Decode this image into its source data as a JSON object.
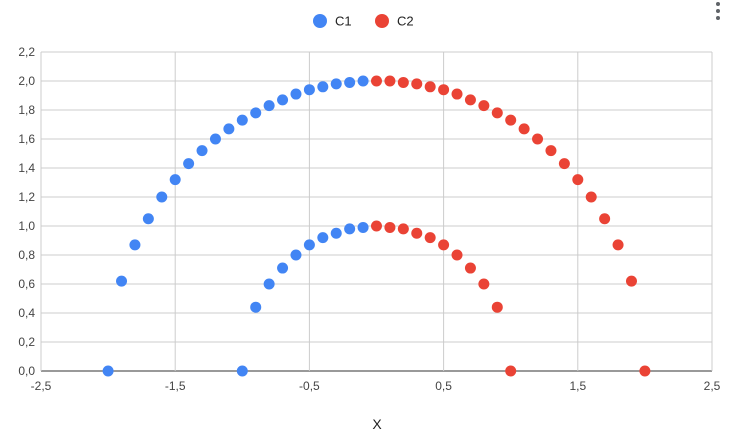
{
  "chart_data": {
    "type": "scatter",
    "title": "",
    "xlabel": "X",
    "ylabel": "",
    "xlim": [
      -2.5,
      2.5
    ],
    "ylim": [
      0,
      2.2
    ],
    "x_ticks": [
      "-2,5",
      "-1,5",
      "-0,5",
      "0,5",
      "1,5",
      "2,5"
    ],
    "x_tick_values": [
      -2.5,
      -1.5,
      -0.5,
      0.5,
      1.5,
      2.5
    ],
    "y_ticks": [
      "0,0",
      "0,2",
      "0,4",
      "0,6",
      "0,8",
      "1,0",
      "1,2",
      "1,4",
      "1,6",
      "1,8",
      "2,0",
      "2,2"
    ],
    "y_tick_values": [
      0,
      0.2,
      0.4,
      0.6,
      0.8,
      1.0,
      1.2,
      1.4,
      1.6,
      1.8,
      2.0,
      2.2
    ],
    "grid": true,
    "legend_position": "top",
    "series": [
      {
        "name": "C1",
        "color": "#4285f4",
        "points": [
          [
            -2.0,
            0.0
          ],
          [
            -1.9,
            0.62
          ],
          [
            -1.8,
            0.87
          ],
          [
            -1.7,
            1.05
          ],
          [
            -1.6,
            1.2
          ],
          [
            -1.5,
            1.32
          ],
          [
            -1.4,
            1.43
          ],
          [
            -1.3,
            1.52
          ],
          [
            -1.2,
            1.6
          ],
          [
            -1.1,
            1.67
          ],
          [
            -1.0,
            1.73
          ],
          [
            -0.9,
            1.78
          ],
          [
            -0.8,
            1.83
          ],
          [
            -0.7,
            1.87
          ],
          [
            -0.6,
            1.91
          ],
          [
            -0.5,
            1.94
          ],
          [
            -0.4,
            1.96
          ],
          [
            -0.3,
            1.98
          ],
          [
            -0.2,
            1.99
          ],
          [
            -0.1,
            2.0
          ],
          [
            -1.0,
            0.0
          ],
          [
            -0.9,
            0.44
          ],
          [
            -0.8,
            0.6
          ],
          [
            -0.7,
            0.71
          ],
          [
            -0.6,
            0.8
          ],
          [
            -0.5,
            0.87
          ],
          [
            -0.4,
            0.92
          ],
          [
            -0.3,
            0.95
          ],
          [
            -0.2,
            0.98
          ],
          [
            -0.1,
            0.99
          ]
        ]
      },
      {
        "name": "C2",
        "color": "#ea4335",
        "points": [
          [
            0.0,
            2.0
          ],
          [
            0.1,
            2.0
          ],
          [
            0.2,
            1.99
          ],
          [
            0.3,
            1.98
          ],
          [
            0.4,
            1.96
          ],
          [
            0.5,
            1.94
          ],
          [
            0.6,
            1.91
          ],
          [
            0.7,
            1.87
          ],
          [
            0.8,
            1.83
          ],
          [
            0.9,
            1.78
          ],
          [
            1.0,
            1.73
          ],
          [
            1.1,
            1.67
          ],
          [
            1.2,
            1.6
          ],
          [
            1.3,
            1.52
          ],
          [
            1.4,
            1.43
          ],
          [
            1.5,
            1.32
          ],
          [
            1.6,
            1.2
          ],
          [
            1.7,
            1.05
          ],
          [
            1.8,
            0.87
          ],
          [
            1.9,
            0.62
          ],
          [
            2.0,
            0.0
          ],
          [
            0.0,
            1.0
          ],
          [
            0.1,
            0.99
          ],
          [
            0.2,
            0.98
          ],
          [
            0.3,
            0.95
          ],
          [
            0.4,
            0.92
          ],
          [
            0.5,
            0.87
          ],
          [
            0.6,
            0.8
          ],
          [
            0.7,
            0.71
          ],
          [
            0.8,
            0.6
          ],
          [
            0.9,
            0.44
          ],
          [
            1.0,
            0.0
          ]
        ]
      }
    ]
  },
  "menu_icon": "more-vert-icon"
}
